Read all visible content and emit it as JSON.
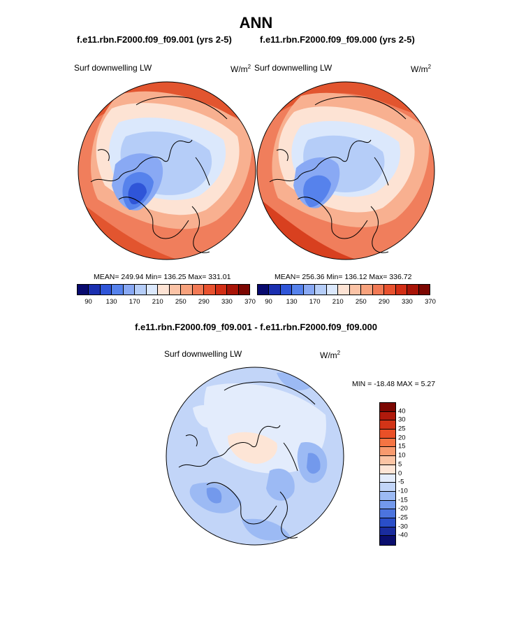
{
  "title": "ANN",
  "panel1": {
    "case": "f.e11.rbn.F2000.f09_f09.001 (yrs 2-5)",
    "variable": "Surf downwelling LW",
    "units_base": "W/m",
    "units_exp": "2",
    "stats": "MEAN= 249.94  Min= 136.25  Max= 331.01"
  },
  "panel2": {
    "case": "f.e11.rbn.F2000.f09_f09.000 (yrs 2-5)",
    "variable": "Surf downwelling LW",
    "units_base": "W/m",
    "units_exp": "2",
    "stats": "MEAN= 256.36  Min= 136.12  Max= 336.72"
  },
  "diff": {
    "title": "f.e11.rbn.F2000.f09_f09.001 - f.e11.rbn.F2000.f09_f09.000",
    "variable": "Surf downwelling LW",
    "units_base": "W/m",
    "units_exp": "2",
    "minmax": "MIN = -18.48 MAX =   5.27"
  },
  "abs_colorbar": {
    "colors": [
      "#080a6e",
      "#1a2fb0",
      "#2f55d8",
      "#5682ec",
      "#89a9f4",
      "#b5cdf8",
      "#dbe8fc",
      "#fde3d4",
      "#fbc3a6",
      "#f7a27d",
      "#f27a55",
      "#e8522f",
      "#d22e15",
      "#a81407",
      "#7c0702"
    ],
    "tick_labels": [
      "90",
      "130",
      "170",
      "210",
      "250",
      "290",
      "330",
      "370"
    ]
  },
  "diff_colorbar": {
    "colors": [
      "#7c0702",
      "#b01a0c",
      "#d23417",
      "#ea5027",
      "#f57443",
      "#f89a6e",
      "#fbc4a4",
      "#fde5d6",
      "#e3ecfc",
      "#c2d5f8",
      "#9cbaf4",
      "#7399ec",
      "#4c74de",
      "#2a4ec8",
      "#1a2c9e",
      "#0a0e6e"
    ],
    "tick_labels": [
      "40",
      "30",
      "25",
      "20",
      "15",
      "10",
      "5",
      "0",
      "-5",
      "-10",
      "-15",
      "-20",
      "-25",
      "-30",
      "-40"
    ]
  }
}
